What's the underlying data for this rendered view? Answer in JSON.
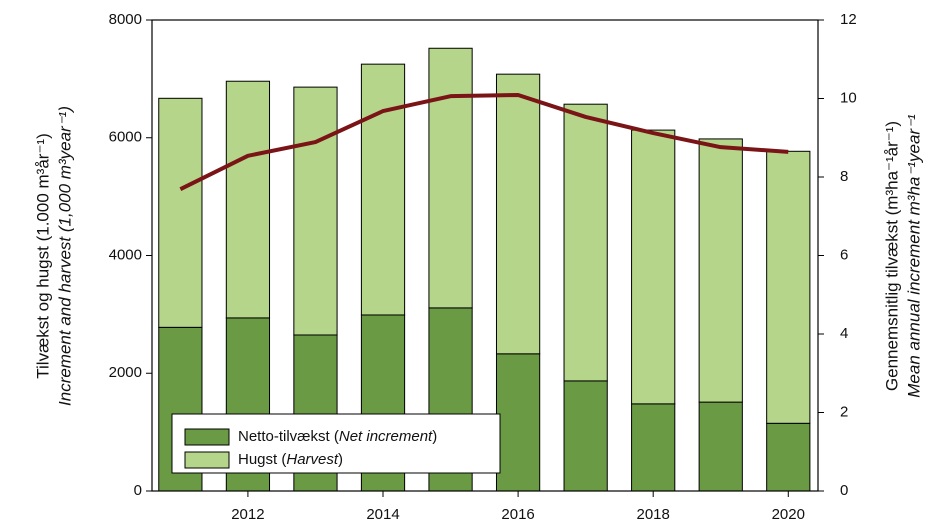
{
  "chart_data": {
    "type": "bar",
    "x": [
      2011,
      2012,
      2013,
      2014,
      2015,
      2016,
      2017,
      2018,
      2019,
      2020
    ],
    "series": [
      {
        "name": "Netto-tilvækst (Net increment)",
        "color": "#6a9a44",
        "values": [
          2780,
          2940,
          2650,
          2990,
          3110,
          2330,
          1870,
          1480,
          1510,
          1150
        ]
      },
      {
        "name": "Hugst (Harvest)",
        "color": "#b5d68a",
        "values": [
          3890,
          4020,
          4210,
          4260,
          4410,
          4750,
          4700,
          4650,
          4470,
          4620
        ]
      },
      {
        "type": "line",
        "axis": "y2",
        "color": "#7b1416",
        "values": [
          7.69,
          8.54,
          8.89,
          9.68,
          10.06,
          10.09,
          9.53,
          9.12,
          8.76,
          8.64
        ]
      }
    ],
    "stacked": true,
    "xlim": [
      2010.58,
      2020.44
    ],
    "xticks": [
      2012,
      2014,
      2016,
      2018,
      2020
    ],
    "ylim": [
      0,
      8000
    ],
    "yticks": [
      0,
      2000,
      4000,
      6000,
      8000
    ],
    "y2lim": [
      0,
      12
    ],
    "y2ticks": [
      0,
      2,
      4,
      6,
      8,
      10,
      12
    ],
    "ylabel": "Tilvækst og hugst (1.000 m³år⁻¹)",
    "ylabel_en": "Increment and harvest (1,000 m³year⁻¹)",
    "y2label": "Gennemsnitlig tilvækst (m³ha⁻¹år⁻¹)",
    "y2label_en": "Mean annual increment m³ha⁻¹year⁻¹",
    "legend": "lower left"
  }
}
